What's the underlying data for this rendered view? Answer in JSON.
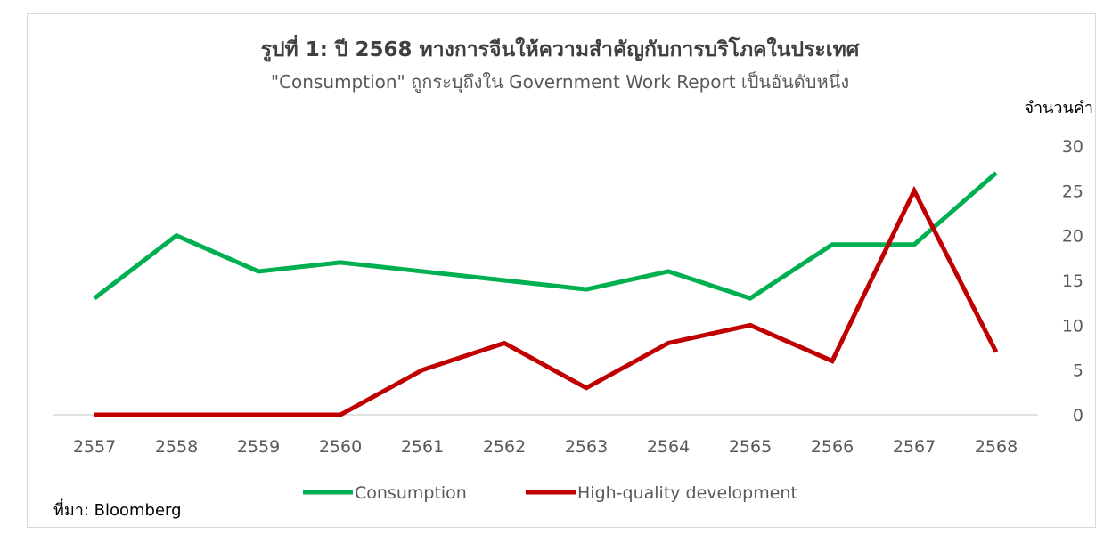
{
  "chart_data": {
    "type": "line",
    "title": "รูปที่ 1: ปี 2568 ทางการจีนให้ความสำคัญกับการบริโภคในประเทศ",
    "subtitle": "\"Consumption\" ถูกระบุถึงใน Government Work Report เป็นอันดับหนึ่ง",
    "ylabel": "จำนวนคำ",
    "xlabel": "",
    "categories": [
      "2557",
      "2558",
      "2559",
      "2560",
      "2561",
      "2562",
      "2563",
      "2564",
      "2565",
      "2566",
      "2567",
      "2568"
    ],
    "y_ticks": [
      "0",
      "5",
      "10",
      "15",
      "20",
      "25",
      "30"
    ],
    "ylim": [
      0,
      30
    ],
    "grid": false,
    "legend_position": "bottom",
    "series": [
      {
        "name": "Consumption",
        "color": "#00b050",
        "values": [
          13,
          20,
          16,
          17,
          16,
          15,
          14,
          16,
          13,
          19,
          19,
          27
        ]
      },
      {
        "name": "High-quality development",
        "color": "#c00000",
        "values": [
          0,
          0,
          0,
          0,
          5,
          8,
          3,
          8,
          10,
          6,
          25,
          7
        ]
      }
    ],
    "source": "ที่มา: Bloomberg"
  }
}
